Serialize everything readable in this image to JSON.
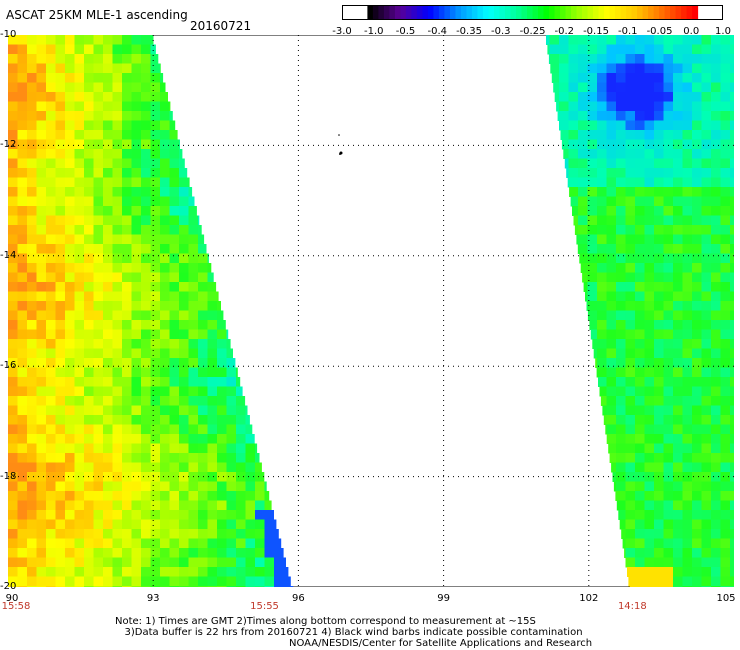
{
  "header": {
    "title": "ASCAT 25KM MLE-1 ascending",
    "date": "20160721"
  },
  "colorbar": {
    "labels": [
      "-3.0",
      "-1.0",
      "-0.5",
      "-0.4",
      "-0.35",
      "-0.3",
      "-0.25",
      "-0.2",
      "-0.15",
      "-0.1",
      "-0.05",
      "0.0",
      "1.0"
    ],
    "colors": [
      "#000000",
      "#5a0096",
      "#0000ff",
      "#0096ff",
      "#00ffff",
      "#00ff96",
      "#00ff00",
      "#96ff00",
      "#ffff00",
      "#ffc800",
      "#ff6400",
      "#ff0000"
    ]
  },
  "axes": {
    "lat_labels": [
      "-10",
      "-12",
      "-14",
      "-16",
      "-18",
      "-20"
    ],
    "lon_labels": [
      "90",
      "93",
      "96",
      "99",
      "102",
      "105"
    ],
    "lat_range": [
      -20,
      -10
    ],
    "lon_range": [
      90,
      105
    ]
  },
  "times": [
    {
      "label": "15:58",
      "lon": 90
    },
    {
      "label": "15:55",
      "lon": 95.3
    },
    {
      "label": "14:18",
      "lon": 102.9
    }
  ],
  "footer": {
    "note_line1": "Note: 1) Times are GMT 2)Times along bottom correspond to measurement at ~15S",
    "note_line2": "3)Data buffer is 22 hrs from 20160721 4) Black wind barbs indicate possible contamination",
    "credit": "NOAA/NESDIS/Center for Satellite Applications and Research"
  }
}
